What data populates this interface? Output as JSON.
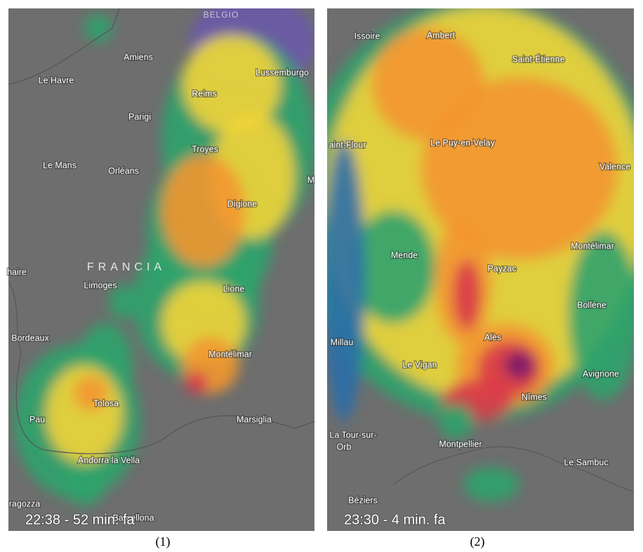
{
  "panels": [
    {
      "caption": "(1)",
      "timestamp": "22:38 - 52 min. fa",
      "country": "BELGIO",
      "region": "FRANCIA",
      "places": [
        "Amiens",
        "Le Havre",
        "Reims",
        "Lussemburgo",
        "Parigi",
        "Troyes",
        "Le Mans",
        "Orléans",
        "M",
        "Digione",
        "haire",
        "Limoges",
        "Lione",
        "Bordeaux",
        "Montélimar",
        "Tolosa",
        "Pau",
        "Marsiglia",
        "Andorra la Vella",
        "ragozza",
        "Barcellona"
      ]
    },
    {
      "caption": "(2)",
      "timestamp": "23:30 - 4 min. fa",
      "places": [
        "Issoire",
        "Ambert",
        "Saint-Étienne",
        "aint-Flour",
        "Le Puy-en-Velay",
        "Valence",
        "Mende",
        "Montélimar",
        "Payzac",
        "Bollène",
        "Alès",
        "Millau",
        "Le Vigan",
        "Avignone",
        "Nîmes",
        "La Tour-sur-",
        "Orb",
        "Montpellier",
        "Le Sambuc",
        "Béziers"
      ]
    }
  ]
}
